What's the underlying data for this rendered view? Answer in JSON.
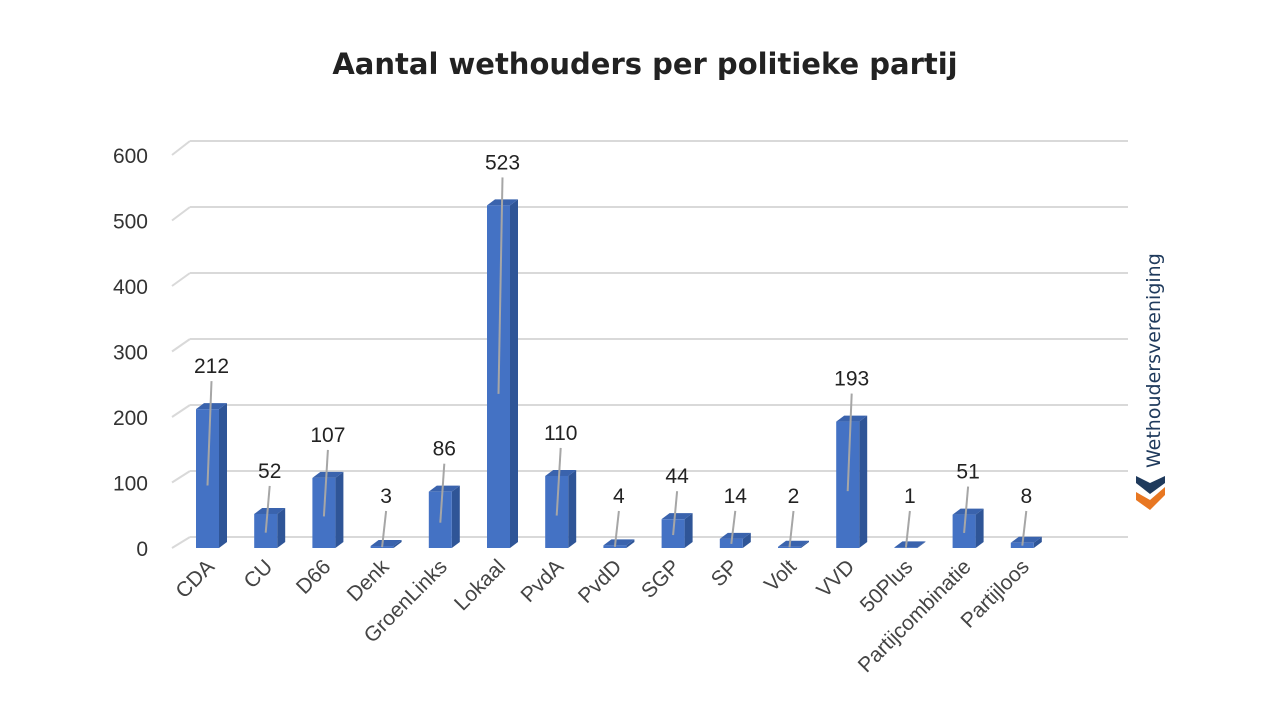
{
  "chart_data": {
    "type": "bar",
    "title": "Aantal wethouders per politieke partij",
    "categories": [
      "CDA",
      "CU",
      "D66",
      "Denk",
      "GroenLinks",
      "Lokaal",
      "PvdA",
      "PvdD",
      "SGP",
      "SP",
      "Volt",
      "VVD",
      "50Plus",
      "Partijcombinatie",
      "Partijloos"
    ],
    "values": [
      212,
      52,
      107,
      3,
      86,
      523,
      110,
      4,
      44,
      14,
      2,
      193,
      1,
      51,
      8
    ],
    "data_labels": [
      "212",
      "52",
      "107",
      "3",
      "86",
      "523",
      "110",
      "4",
      "44",
      "14",
      "2",
      "193",
      "1",
      "51",
      "8"
    ],
    "yticks": [
      "0",
      "100",
      "200",
      "300",
      "400",
      "500",
      "600"
    ],
    "ylim": [
      0,
      600
    ],
    "grid": true,
    "legend": "none",
    "colors": {
      "bar_front": "#4472c4",
      "bar_side": "#2f5597",
      "bar_top": "#3a63ad",
      "grid": "#d9d9d9",
      "leader_line": "#a6a6a6"
    }
  },
  "brand": {
    "name": "Wethoudersvereniging",
    "logo_colors": [
      "#1f3a5c",
      "#e87722"
    ]
  }
}
